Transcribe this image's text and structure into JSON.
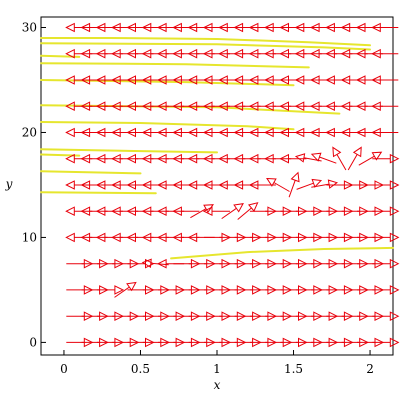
{
  "chart_data": {
    "type": "vector_field",
    "xlabel": "x",
    "ylabel": "y",
    "xlim": [
      -0.15,
      2.15
    ],
    "ylim": [
      -1.2,
      31.0
    ],
    "x_ticks": [
      0,
      0.5,
      1,
      1.5,
      2
    ],
    "x_tick_labels": [
      "0",
      "0.5",
      "1",
      "1.5",
      "2"
    ],
    "y_ticks": [
      0,
      10,
      20,
      30
    ],
    "y_tick_labels": [
      "0",
      "10",
      "20",
      "30"
    ],
    "arrow_color": "#e8000b",
    "curve_color": "#e6e62e",
    "grid": false,
    "field": {
      "x": [
        0.1,
        0.2,
        0.3,
        0.4,
        0.5,
        0.6,
        0.7,
        0.8,
        0.9,
        1.0,
        1.1,
        1.2,
        1.3,
        1.4,
        1.5,
        1.6,
        1.7,
        1.8,
        1.9,
        2.0,
        2.1
      ],
      "rows": [
        {
          "y": 0.0,
          "angles": [
            0,
            0,
            0,
            0,
            0,
            0,
            0,
            0,
            0,
            0,
            0,
            0,
            0,
            0,
            0,
            0,
            0,
            0,
            0,
            0,
            0
          ]
        },
        {
          "y": 2.5,
          "angles": [
            0,
            0,
            0,
            0,
            0,
            0,
            0,
            0,
            0,
            0,
            0,
            0,
            0,
            0,
            0,
            0,
            0,
            0,
            0,
            0,
            0
          ]
        },
        {
          "y": 5.0,
          "angles": [
            0,
            0,
            0,
            35,
            0,
            0,
            0,
            0,
            0,
            0,
            0,
            0,
            0,
            0,
            0,
            0,
            0,
            0,
            0,
            0,
            0
          ]
        },
        {
          "y": 7.5,
          "angles": [
            0,
            0,
            0,
            0,
            0,
            175,
            180,
            0,
            0,
            0,
            0,
            0,
            0,
            0,
            0,
            0,
            0,
            0,
            0,
            0,
            0
          ]
        },
        {
          "y": 10.0,
          "angles": [
            180,
            180,
            180,
            180,
            180,
            180,
            180,
            180,
            180,
            0,
            0,
            0,
            0,
            0,
            0,
            0,
            0,
            0,
            0,
            0,
            0
          ]
        },
        {
          "y": 12.5,
          "angles": [
            180,
            180,
            180,
            180,
            180,
            180,
            180,
            180,
            30,
            180,
            35,
            40,
            0,
            0,
            0,
            0,
            0,
            0,
            0,
            0,
            0
          ]
        },
        {
          "y": 15.0,
          "angles": [
            180,
            180,
            180,
            180,
            180,
            180,
            180,
            180,
            180,
            180,
            180,
            180,
            180,
            150,
            70,
            20,
            10,
            0,
            0,
            0,
            0
          ]
        },
        {
          "y": 17.5,
          "angles": [
            180,
            180,
            180,
            180,
            180,
            180,
            180,
            180,
            180,
            180,
            180,
            180,
            180,
            180,
            180,
            170,
            160,
            120,
            60,
            30,
            0
          ]
        },
        {
          "y": 20.0,
          "angles": [
            180,
            180,
            180,
            180,
            180,
            180,
            180,
            180,
            180,
            180,
            180,
            180,
            180,
            180,
            180,
            180,
            180,
            180,
            180,
            180,
            180
          ]
        },
        {
          "y": 22.5,
          "angles": [
            180,
            180,
            180,
            180,
            180,
            180,
            180,
            180,
            180,
            180,
            180,
            180,
            180,
            180,
            180,
            180,
            180,
            180,
            180,
            180,
            180
          ]
        },
        {
          "y": 25.0,
          "angles": [
            180,
            180,
            180,
            180,
            180,
            180,
            180,
            180,
            180,
            180,
            180,
            180,
            180,
            180,
            180,
            180,
            180,
            180,
            180,
            180,
            180
          ]
        },
        {
          "y": 27.5,
          "angles": [
            180,
            180,
            180,
            180,
            180,
            180,
            180,
            180,
            180,
            180,
            180,
            180,
            180,
            180,
            180,
            180,
            180,
            180,
            180,
            180,
            180
          ]
        },
        {
          "y": 30.0,
          "angles": [
            180,
            180,
            180,
            180,
            180,
            180,
            180,
            180,
            180,
            180,
            180,
            180,
            180,
            180,
            180,
            180,
            180,
            180,
            180,
            180,
            180
          ]
        }
      ]
    },
    "curves": [
      {
        "x": [
          -0.15,
          0.3,
          1.0,
          1.6,
          2.0
        ],
        "y": [
          29.0,
          29.0,
          28.9,
          28.6,
          28.3
        ]
      },
      {
        "x": [
          -0.15,
          1.0,
          1.7,
          2.0
        ],
        "y": [
          28.5,
          28.4,
          28.1,
          27.9
        ]
      },
      {
        "x": [
          -0.15,
          0.1
        ],
        "y": [
          27.3,
          27.2
        ]
      },
      {
        "x": [
          -0.15,
          0.8,
          1.6
        ],
        "y": [
          26.6,
          26.5,
          26.2
        ]
      },
      {
        "x": [
          -0.15,
          0.8,
          1.5
        ],
        "y": [
          25.0,
          24.8,
          24.5
        ]
      },
      {
        "x": [
          -0.15,
          1.0,
          1.8
        ],
        "y": [
          22.6,
          22.4,
          21.8
        ]
      },
      {
        "x": [
          -0.15,
          0.5,
          1.2,
          1.5
        ],
        "y": [
          21.0,
          20.9,
          20.6,
          20.3
        ]
      },
      {
        "x": [
          -0.15,
          1.0
        ],
        "y": [
          18.4,
          18.1
        ]
      },
      {
        "x": [
          -0.15,
          0.1
        ],
        "y": [
          17.9,
          17.8
        ]
      },
      {
        "x": [
          -0.15,
          0.5
        ],
        "y": [
          16.3,
          16.1
        ]
      },
      {
        "x": [
          -0.15,
          0.6
        ],
        "y": [
          14.3,
          14.2
        ]
      },
      {
        "x": [
          0.7,
          1.2,
          1.7,
          2.15
        ],
        "y": [
          8.0,
          8.6,
          8.9,
          9.0
        ]
      }
    ]
  }
}
